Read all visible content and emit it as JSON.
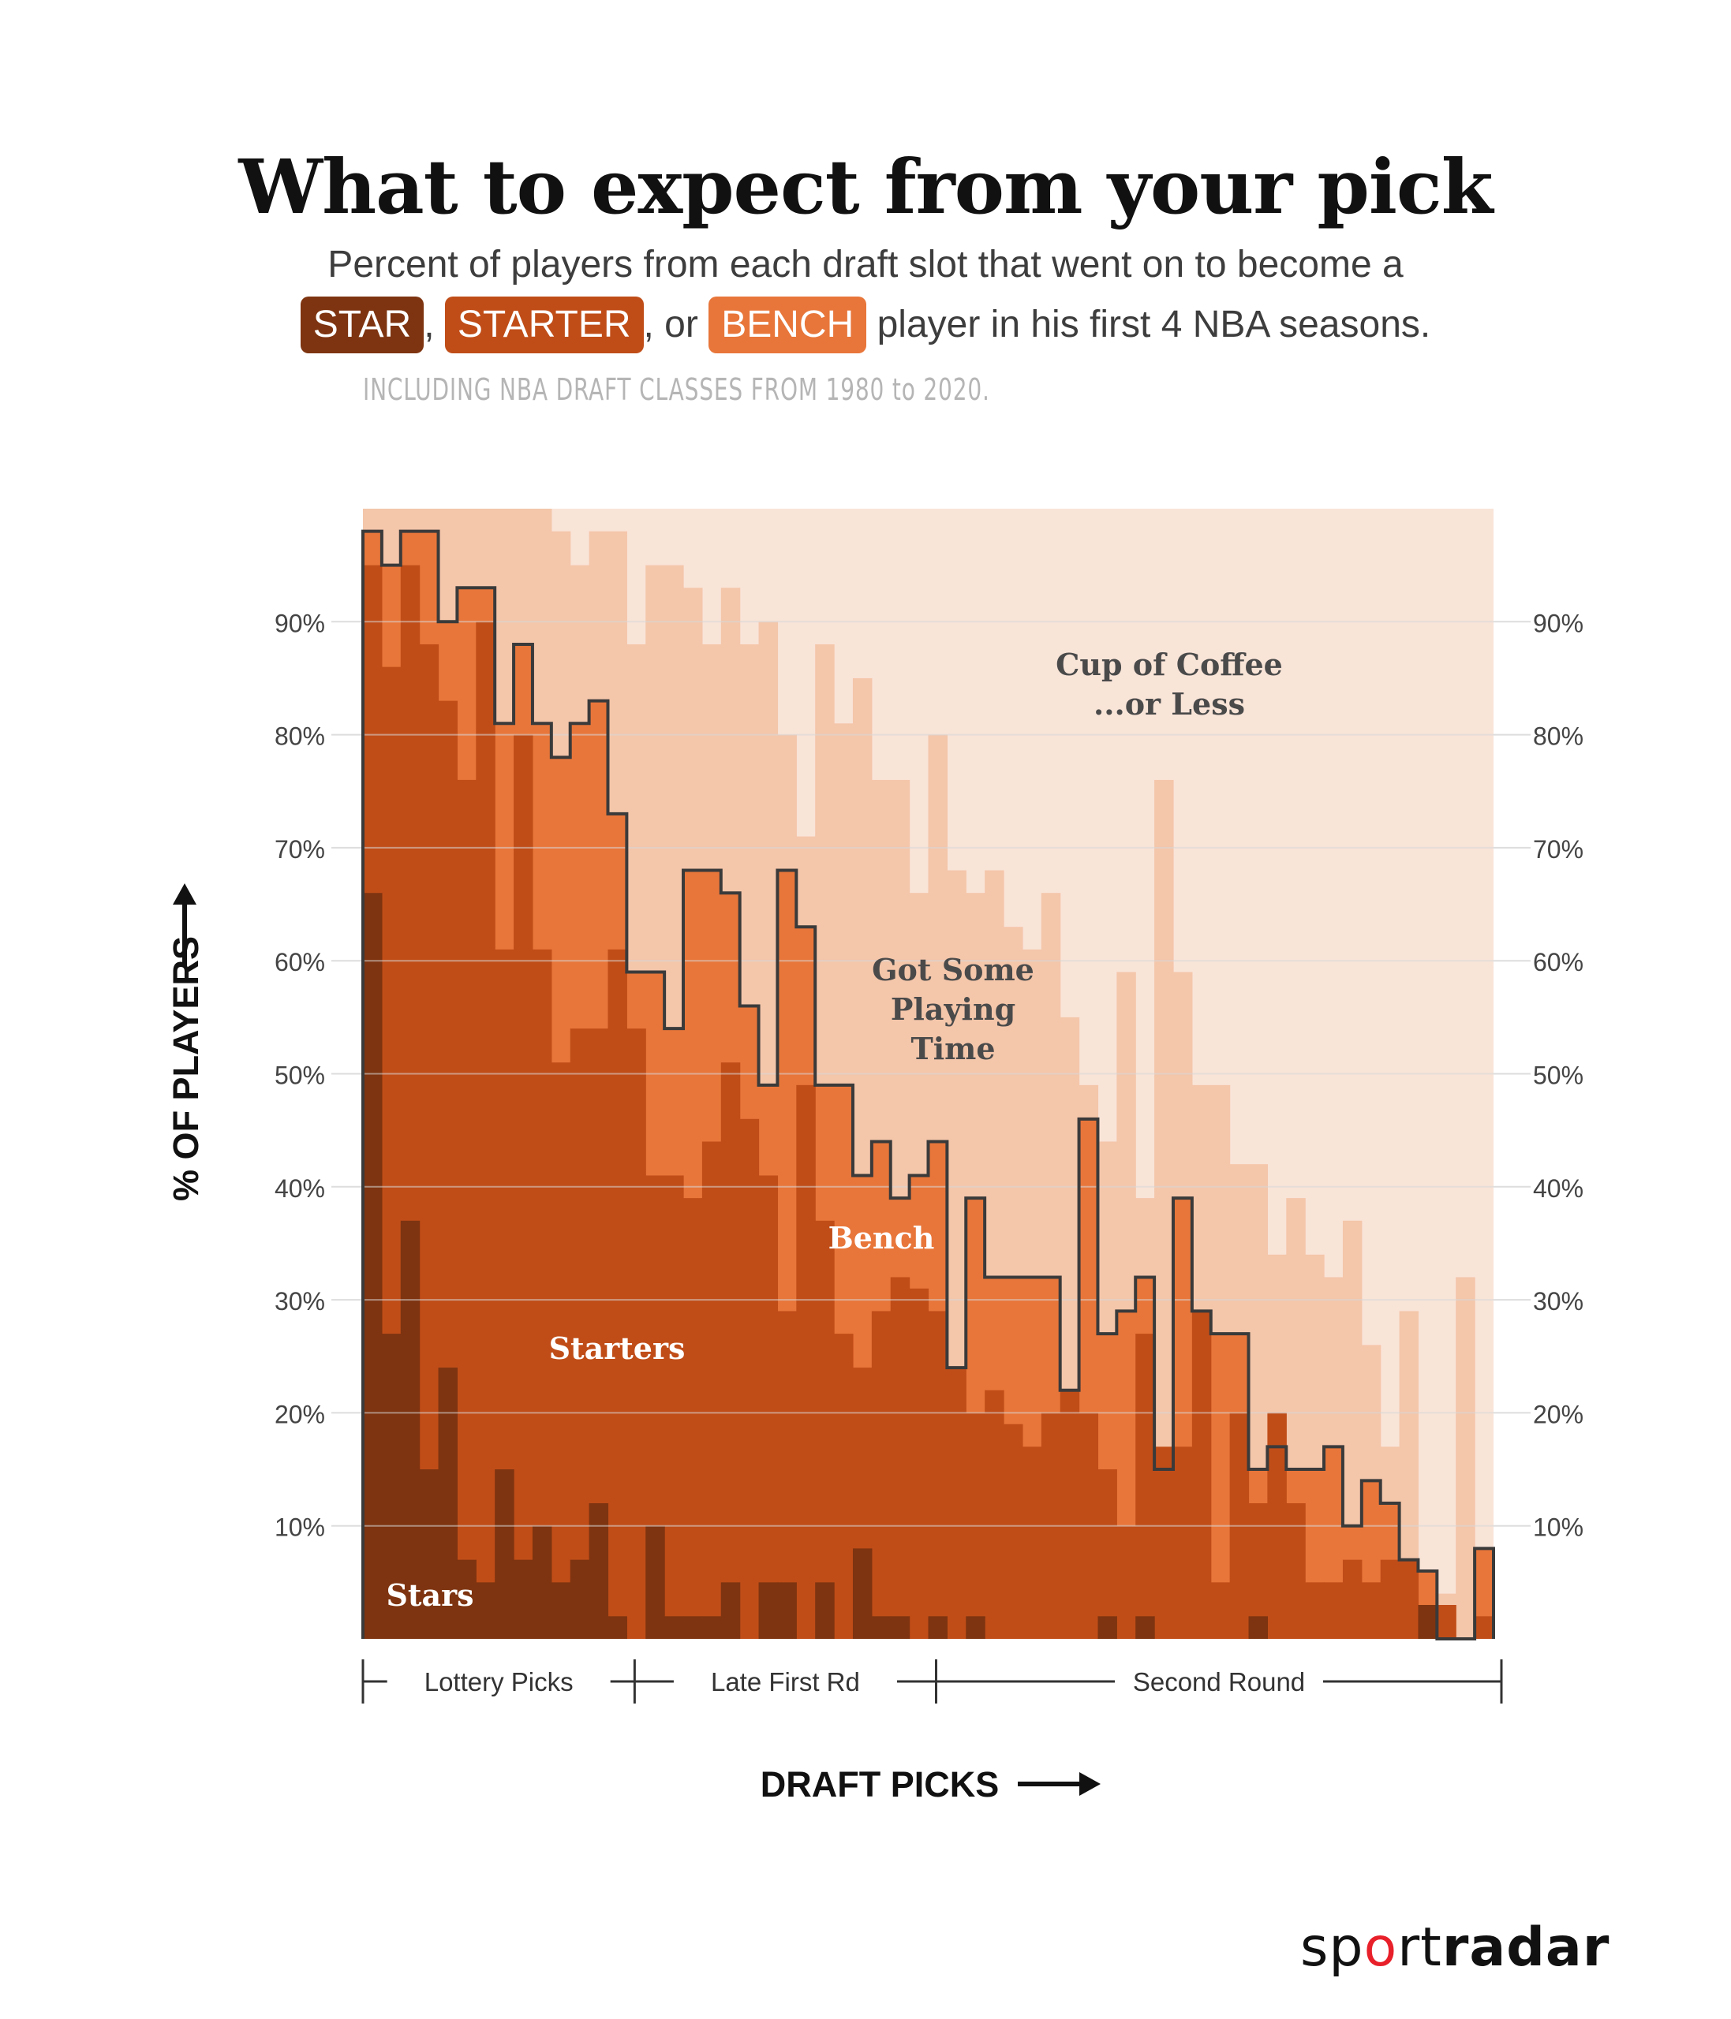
{
  "header": {
    "title": "What to expect from your pick",
    "subtitle_line1": "Percent of players from each draft slot that went on to become a",
    "chip_star": "STAR",
    "sep1": ",",
    "chip_starter": "STARTER",
    "sep2": ", or",
    "chip_bench": "BENCH",
    "subtitle_line2_end": "player in his first 4 NBA seasons.",
    "note": "INCLUDING NBA DRAFT CLASSES FROM 1980 to 2020."
  },
  "colors": {
    "star": "#7e3410",
    "starter": "#c04d18",
    "bench": "#e8763a",
    "playing_time": "#f4c6aa",
    "coffee": "#f9e4d8",
    "outline": "#3a3a3a",
    "grid": "#dddddd"
  },
  "chart_data": {
    "type": "area",
    "subtype": "stacked-step",
    "ylabel": "% OF PLAYERS",
    "xlabel": "DRAFT PICKS",
    "ylim": [
      0,
      100
    ],
    "yticks": [
      10,
      20,
      30,
      40,
      50,
      60,
      70,
      80,
      90
    ],
    "ytick_labels": [
      "10%",
      "20%",
      "30%",
      "40%",
      "50%",
      "60%",
      "70%",
      "80%",
      "90%"
    ],
    "x": [
      1,
      2,
      3,
      4,
      5,
      6,
      7,
      8,
      9,
      10,
      11,
      12,
      13,
      14,
      15,
      16,
      17,
      18,
      19,
      20,
      21,
      22,
      23,
      24,
      25,
      26,
      27,
      28,
      29,
      30,
      31,
      32,
      33,
      34,
      35,
      36,
      37,
      38,
      39,
      40,
      41,
      42,
      43,
      44,
      45,
      46,
      47,
      48,
      49,
      50,
      51,
      52,
      53,
      54,
      55,
      56,
      57,
      58,
      59,
      60
    ],
    "series": [
      {
        "name": "Stars",
        "values": [
          66,
          27,
          37,
          15,
          24,
          7,
          5,
          15,
          7,
          10,
          5,
          7,
          12,
          2,
          0,
          10,
          2,
          2,
          2,
          5,
          0,
          5,
          5,
          0,
          5,
          0,
          8,
          2,
          2,
          0,
          2,
          0,
          2,
          0,
          0,
          0,
          0,
          0,
          0,
          2,
          0,
          2,
          0,
          0,
          0,
          0,
          0,
          2,
          0,
          0,
          0,
          0,
          0,
          0,
          0,
          0,
          3,
          0,
          0,
          0
        ]
      },
      {
        "name": "Starters",
        "values": [
          95,
          86,
          95,
          88,
          83,
          76,
          90,
          61,
          80,
          61,
          51,
          54,
          54,
          61,
          54,
          41,
          41,
          39,
          44,
          51,
          46,
          41,
          29,
          49,
          37,
          27,
          24,
          29,
          32,
          31,
          29,
          24,
          20,
          22,
          19,
          17,
          20,
          22,
          20,
          15,
          10,
          27,
          17,
          17,
          29,
          5,
          20,
          12,
          20,
          12,
          5,
          5,
          7,
          5,
          7,
          7,
          2,
          3,
          0,
          2
        ]
      },
      {
        "name": "Bench",
        "values": [
          98,
          95,
          98,
          98,
          90,
          93,
          93,
          81,
          88,
          81,
          78,
          81,
          83,
          73,
          59,
          59,
          54,
          68,
          68,
          66,
          56,
          49,
          68,
          63,
          49,
          49,
          41,
          44,
          39,
          41,
          44,
          24,
          39,
          32,
          32,
          32,
          32,
          22,
          46,
          27,
          29,
          32,
          15,
          39,
          29,
          27,
          27,
          15,
          17,
          15,
          15,
          17,
          10,
          14,
          12,
          7,
          6,
          0,
          0,
          8
        ]
      },
      {
        "name": "Got Some Playing Time",
        "values": [
          100,
          100,
          100,
          100,
          100,
          100,
          100,
          100,
          100,
          100,
          98,
          95,
          98,
          98,
          88,
          95,
          95,
          93,
          88,
          93,
          88,
          90,
          80,
          71,
          88,
          81,
          85,
          76,
          76,
          66,
          80,
          68,
          66,
          68,
          63,
          61,
          66,
          55,
          49,
          44,
          59,
          39,
          76,
          59,
          49,
          49,
          42,
          42,
          34,
          39,
          34,
          32,
          37,
          26,
          17,
          29,
          4,
          4,
          32,
          0
        ]
      }
    ],
    "region_labels": {
      "stars": "Stars",
      "starters": "Starters",
      "bench": "Bench",
      "playing_time_l1": "Got Some",
      "playing_time_l2": "Playing",
      "playing_time_l3": "Time",
      "coffee_l1": "Cup of Coffee",
      "coffee_l2": "...or Less"
    },
    "x_groups": [
      {
        "label": "Lottery Picks",
        "from": 1,
        "to": 14
      },
      {
        "label": "Late First Rd",
        "from": 15,
        "to": 30
      },
      {
        "label": "Second Round",
        "from": 31,
        "to": 60
      }
    ],
    "grid": true
  },
  "brand": {
    "logo_pre": "sp",
    "logo_o": "o",
    "logo_mid": "rt",
    "logo_bold": "radar"
  }
}
